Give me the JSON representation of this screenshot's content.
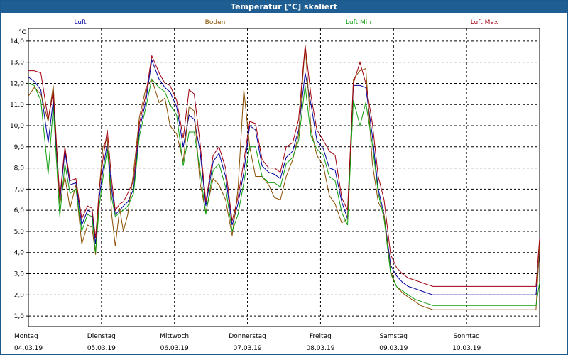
{
  "window": {
    "title": "Temperatur [°C] skaliert"
  },
  "chart_data": {
    "type": "line",
    "title": "Temperatur [°C] skaliert",
    "ylabel": "°C",
    "xlabel": "",
    "ylim": [
      0.5,
      14.6
    ],
    "yticks": [
      "14,0",
      "13,0",
      "12,0",
      "11,0",
      "10,0",
      "9,0",
      "8,0",
      "7,0",
      "6,0",
      "5,0",
      "4,0",
      "3,0",
      "2,0",
      "1,0"
    ],
    "ytick_values": [
      14,
      13,
      12,
      11,
      10,
      9,
      8,
      7,
      6,
      5,
      4,
      3,
      2,
      1
    ],
    "xlim": [
      0,
      7
    ],
    "days": [
      {
        "day": "Montag",
        "date": "04.03.19",
        "x": 0
      },
      {
        "day": "Dienstag",
        "date": "05.03.19",
        "x": 1
      },
      {
        "day": "Mittwoch",
        "date": "06.03.19",
        "x": 2
      },
      {
        "day": "Donnerstag",
        "date": "07.03.19",
        "x": 3
      },
      {
        "day": "Freitag",
        "date": "08.03.19",
        "x": 4
      },
      {
        "day": "Samstag",
        "date": "09.03.19",
        "x": 5
      },
      {
        "day": "Sonntag",
        "date": "10.03.19",
        "x": 6
      }
    ],
    "grid": true,
    "series": [
      {
        "name": "Luft",
        "color": "#0000a0",
        "x": [
          0,
          0.08,
          0.17,
          0.27,
          0.34,
          0.43,
          0.5,
          0.57,
          0.65,
          0.73,
          0.81,
          0.87,
          0.92,
          0.97,
          1.02,
          1.08,
          1.14,
          1.19,
          1.25,
          1.3,
          1.36,
          1.44,
          1.52,
          1.61,
          1.69,
          1.79,
          1.87,
          1.94,
          2.03,
          2.12,
          2.2,
          2.27,
          2.35,
          2.43,
          2.53,
          2.61,
          2.7,
          2.79,
          2.87,
          2.95,
          3.03,
          3.11,
          3.2,
          3.29,
          3.37,
          3.45,
          3.53,
          3.62,
          3.7,
          3.79,
          3.87,
          3.95,
          4.04,
          4.12,
          4.2,
          4.29,
          4.37,
          4.45,
          4.54,
          4.62,
          4.71,
          4.79,
          4.87,
          4.96,
          5.04,
          5.12,
          5.2,
          5.29,
          5.37,
          5.45,
          5.54,
          5.62,
          5.7,
          5.79,
          5.87,
          5.95,
          6.04,
          6.12,
          6.2,
          6.29,
          6.37,
          6.45,
          6.54,
          6.62,
          6.71,
          6.79,
          6.87,
          6.95,
          7.0
        ],
        "y": [
          12.3,
          12.1,
          11.7,
          9.2,
          11.2,
          6.4,
          8.8,
          7.2,
          7.3,
          5.3,
          6.0,
          5.9,
          4.4,
          6.6,
          7.9,
          9.2,
          7.0,
          5.8,
          6.0,
          6.2,
          6.4,
          7.0,
          9.8,
          11.2,
          13.1,
          12.2,
          11.8,
          11.6,
          10.9,
          9.0,
          10.5,
          10.3,
          8.8,
          6.2,
          8.3,
          8.7,
          7.6,
          5.3,
          6.3,
          7.8,
          10.0,
          9.8,
          8.1,
          7.8,
          7.7,
          7.5,
          8.5,
          8.8,
          9.8,
          12.5,
          11.0,
          9.3,
          8.9,
          8.0,
          7.9,
          6.4,
          5.6,
          11.9,
          11.9,
          11.8,
          9.5,
          7.0,
          5.8,
          3.4,
          2.9,
          2.6,
          2.4,
          2.3,
          2.2,
          2.1,
          2.0,
          2.0,
          2.0,
          2.0,
          2.0,
          2.0,
          2.0,
          2.0,
          2.0,
          2.0,
          2.0,
          2.0,
          2.0,
          2.0,
          2.0,
          2.0,
          2.0,
          2.0,
          4.1
        ]
      },
      {
        "name": "Boden",
        "color": "#8a4e00",
        "x": [
          0,
          0.08,
          0.17,
          0.27,
          0.34,
          0.43,
          0.5,
          0.57,
          0.65,
          0.73,
          0.81,
          0.87,
          0.92,
          0.97,
          1.02,
          1.08,
          1.14,
          1.19,
          1.25,
          1.3,
          1.36,
          1.44,
          1.52,
          1.61,
          1.69,
          1.79,
          1.87,
          1.94,
          2.03,
          2.12,
          2.2,
          2.27,
          2.35,
          2.43,
          2.53,
          2.61,
          2.7,
          2.79,
          2.87,
          2.95,
          3.03,
          3.11,
          3.2,
          3.29,
          3.37,
          3.45,
          3.53,
          3.62,
          3.7,
          3.79,
          3.87,
          3.95,
          4.04,
          4.12,
          4.2,
          4.29,
          4.37,
          4.45,
          4.54,
          4.62,
          4.71,
          4.79,
          4.87,
          4.96,
          5.04,
          5.12,
          5.2,
          5.29,
          5.37,
          5.45,
          5.54,
          5.62,
          5.7,
          5.79,
          5.87,
          5.95,
          6.04,
          6.12,
          6.2,
          6.29,
          6.37,
          6.45,
          6.54,
          6.62,
          6.71,
          6.79,
          6.87,
          6.95,
          7.0
        ],
        "y": [
          11.4,
          11.8,
          11.5,
          10.2,
          11.9,
          6.3,
          7.6,
          6.1,
          7.2,
          4.4,
          5.3,
          5.2,
          3.9,
          7.0,
          9.0,
          9.4,
          5.8,
          4.3,
          6.1,
          5.0,
          5.8,
          7.8,
          10.4,
          11.8,
          12.2,
          11.1,
          11.3,
          10.0,
          9.6,
          8.3,
          10.9,
          10.7,
          7.3,
          5.9,
          7.5,
          7.2,
          6.5,
          4.8,
          7.0,
          11.7,
          9.0,
          7.6,
          7.6,
          7.2,
          6.6,
          6.5,
          7.6,
          8.4,
          9.6,
          13.8,
          9.8,
          8.6,
          8.1,
          6.7,
          6.3,
          5.4,
          5.6,
          12.2,
          12.6,
          12.7,
          8.2,
          6.4,
          5.8,
          3.1,
          2.4,
          2.1,
          1.9,
          1.7,
          1.5,
          1.4,
          1.3,
          1.3,
          1.3,
          1.3,
          1.3,
          1.3,
          1.3,
          1.3,
          1.3,
          1.3,
          1.3,
          1.3,
          1.3,
          1.3,
          1.3,
          1.3,
          1.3,
          1.3,
          4.4
        ]
      },
      {
        "name": "Luft Min",
        "color": "#10a010",
        "x": [
          0,
          0.08,
          0.17,
          0.27,
          0.34,
          0.43,
          0.5,
          0.57,
          0.65,
          0.73,
          0.81,
          0.87,
          0.92,
          0.97,
          1.02,
          1.08,
          1.14,
          1.19,
          1.25,
          1.3,
          1.36,
          1.44,
          1.52,
          1.61,
          1.69,
          1.79,
          1.87,
          1.94,
          2.03,
          2.12,
          2.2,
          2.27,
          2.35,
          2.43,
          2.53,
          2.61,
          2.7,
          2.79,
          2.87,
          2.95,
          3.03,
          3.11,
          3.2,
          3.29,
          3.37,
          3.45,
          3.53,
          3.62,
          3.7,
          3.79,
          3.87,
          3.95,
          4.04,
          4.12,
          4.2,
          4.29,
          4.37,
          4.45,
          4.54,
          4.62,
          4.71,
          4.79,
          4.87,
          4.96,
          5.04,
          5.12,
          5.2,
          5.29,
          5.37,
          5.45,
          5.54,
          5.62,
          5.7,
          5.79,
          5.87,
          5.95,
          6.04,
          6.12,
          6.2,
          6.29,
          6.37,
          6.45,
          6.54,
          6.62,
          6.71,
          6.79,
          6.87,
          6.95,
          7.0
        ],
        "y": [
          12.0,
          11.9,
          11.2,
          7.7,
          10.9,
          5.7,
          8.2,
          6.8,
          7.0,
          5.0,
          5.8,
          5.7,
          4.0,
          6.2,
          7.5,
          8.9,
          6.6,
          5.7,
          5.9,
          6.0,
          6.2,
          6.8,
          9.5,
          10.9,
          12.2,
          11.8,
          11.6,
          11.0,
          10.5,
          8.1,
          9.7,
          9.7,
          7.9,
          5.8,
          7.9,
          8.2,
          7.1,
          5.0,
          5.8,
          7.3,
          9.0,
          9.0,
          7.6,
          7.3,
          7.3,
          7.1,
          8.2,
          8.5,
          9.3,
          11.9,
          9.5,
          8.9,
          8.6,
          7.6,
          7.4,
          5.9,
          5.3,
          11.2,
          10.0,
          11.1,
          9.1,
          6.8,
          5.6,
          3.0,
          2.4,
          2.2,
          2.0,
          1.8,
          1.7,
          1.6,
          1.5,
          1.5,
          1.5,
          1.5,
          1.5,
          1.5,
          1.5,
          1.5,
          1.5,
          1.5,
          1.5,
          1.5,
          1.5,
          1.5,
          1.5,
          1.5,
          1.5,
          1.5,
          2.6
        ]
      },
      {
        "name": "Luft Max",
        "color": "#a00010",
        "x": [
          0,
          0.08,
          0.17,
          0.27,
          0.34,
          0.43,
          0.5,
          0.57,
          0.65,
          0.73,
          0.81,
          0.87,
          0.92,
          0.97,
          1.02,
          1.08,
          1.14,
          1.19,
          1.25,
          1.3,
          1.36,
          1.44,
          1.52,
          1.61,
          1.69,
          1.79,
          1.87,
          1.94,
          2.03,
          2.12,
          2.2,
          2.27,
          2.35,
          2.43,
          2.53,
          2.61,
          2.7,
          2.79,
          2.87,
          2.95,
          3.03,
          3.11,
          3.2,
          3.29,
          3.37,
          3.45,
          3.53,
          3.62,
          3.7,
          3.79,
          3.87,
          3.95,
          4.04,
          4.12,
          4.2,
          4.29,
          4.37,
          4.45,
          4.54,
          4.62,
          4.71,
          4.79,
          4.87,
          4.96,
          5.04,
          5.12,
          5.2,
          5.29,
          5.37,
          5.45,
          5.54,
          5.62,
          5.7,
          5.79,
          5.87,
          5.95,
          6.04,
          6.12,
          6.2,
          6.29,
          6.37,
          6.45,
          6.54,
          6.62,
          6.71,
          6.79,
          6.87,
          6.95,
          7.0
        ],
        "y": [
          12.6,
          12.6,
          12.5,
          10.3,
          11.6,
          6.6,
          9.0,
          7.4,
          7.5,
          5.6,
          6.2,
          6.1,
          4.7,
          7.0,
          8.4,
          9.8,
          7.4,
          6.0,
          6.3,
          6.4,
          6.8,
          7.4,
          10.1,
          11.5,
          13.3,
          12.5,
          12.0,
          11.9,
          11.2,
          9.4,
          11.7,
          11.5,
          9.2,
          6.4,
          8.6,
          9.0,
          8.0,
          5.5,
          6.6,
          8.3,
          10.2,
          10.1,
          8.4,
          8.0,
          8.0,
          7.8,
          9.0,
          9.2,
          10.3,
          13.8,
          11.4,
          9.8,
          9.3,
          8.8,
          8.6,
          6.6,
          6.0,
          12.0,
          13.0,
          12.0,
          10.1,
          7.6,
          6.5,
          3.9,
          3.3,
          3.0,
          2.8,
          2.7,
          2.6,
          2.5,
          2.4,
          2.4,
          2.4,
          2.4,
          2.4,
          2.4,
          2.4,
          2.4,
          2.4,
          2.4,
          2.4,
          2.4,
          2.4,
          2.4,
          2.4,
          2.4,
          2.4,
          2.4,
          4.7
        ]
      }
    ]
  }
}
